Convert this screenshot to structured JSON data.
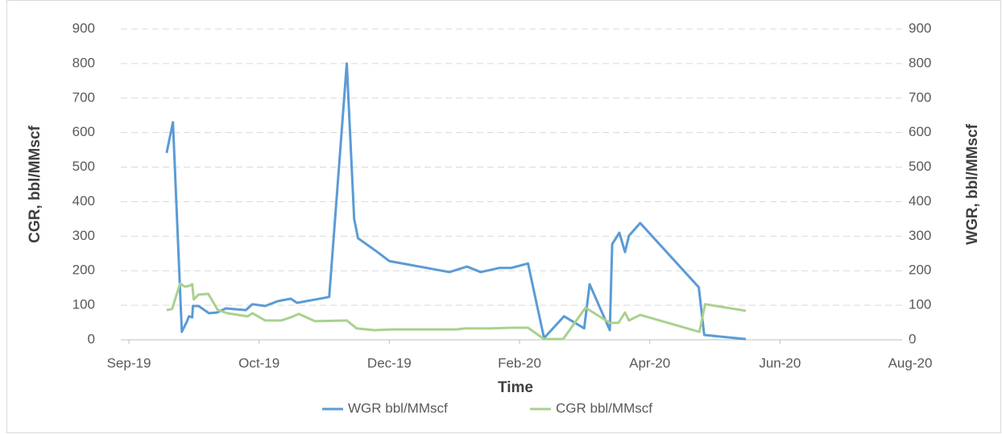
{
  "chart_data": {
    "type": "line",
    "x_label": "Time",
    "y_label": "CGR, bbl/MMscf",
    "y2_label": "WGR, bbl/MMscf",
    "xlim": [
      0,
      360
    ],
    "xticks": [
      {
        "value": 0,
        "label": "Sep-19"
      },
      {
        "value": 60,
        "label": "Oct-19"
      },
      {
        "value": 120,
        "label": "Dec-19"
      },
      {
        "value": 180,
        "label": "Feb-20"
      },
      {
        "value": 240,
        "label": "Apr-20"
      },
      {
        "value": 300,
        "label": "Jun-20"
      },
      {
        "value": 360,
        "label": "Aug-20"
      }
    ],
    "ylim": [
      0,
      900
    ],
    "yticks": [
      0,
      100,
      200,
      300,
      400,
      500,
      600,
      700,
      800,
      900
    ],
    "y2lim": [
      0,
      900
    ],
    "y2ticks": [
      0,
      100,
      200,
      300,
      400,
      500,
      600,
      700,
      800,
      900
    ],
    "grid": true,
    "legend": "bottom",
    "series": [
      {
        "name": "WGR bbl/MMscf",
        "color": "#5b9bd5",
        "axis": "y2",
        "x": [
          17.4,
          20.3,
          24.4,
          26.6,
          27.7,
          29.2,
          29.5,
          32.1,
          36.9,
          40.6,
          44.7,
          53.9,
          56.9,
          62.8,
          68.7,
          74.6,
          77.5,
          92.3,
          100.4,
          103.8,
          105.6,
          114.1,
          120,
          147.7,
          155.8,
          162.1,
          170.6,
          176.1,
          183.9,
          191.3,
          200.5,
          209.8,
          212.3,
          221.6,
          222.7,
          226,
          228.6,
          230.4,
          235.6,
          262.6,
          265.1,
          284.3
        ],
        "values": [
          541,
          630,
          23,
          51,
          68,
          65,
          98,
          98,
          77,
          79,
          91,
          86,
          103,
          98,
          112,
          119,
          107,
          124,
          800,
          350,
          294,
          256,
          228,
          196,
          212,
          196,
          208,
          208,
          221,
          5,
          68,
          33,
          161,
          28,
          277,
          310,
          254,
          301,
          338,
          152,
          14,
          2
        ]
      },
      {
        "name": "CGR bbl/MMscf",
        "color": "#a9d18e",
        "x": [
          17.4,
          19.9,
          23.6,
          25.8,
          27.7,
          29.2,
          29.9,
          32.1,
          36.6,
          41,
          45.4,
          54.7,
          56.9,
          62.8,
          70.2,
          74.6,
          78.3,
          85.7,
          100.4,
          104.9,
          113,
          121.5,
          150.7,
          155.1,
          166.2,
          177.3,
          183.9,
          191.3,
          200.1,
          210.4,
          221.6,
          225.6,
          228.6,
          230.4,
          235.6,
          262.9,
          265.5,
          284.3
        ],
        "values": [
          86,
          89,
          163,
          154,
          156,
          161,
          117,
          131,
          133,
          86,
          77,
          68,
          77,
          56,
          56,
          65,
          75,
          54,
          56,
          33,
          28,
          30,
          30,
          33,
          33,
          35,
          35,
          2,
          2,
          93,
          49,
          49,
          79,
          56,
          72,
          23,
          103,
          84
        ]
      }
    ]
  }
}
